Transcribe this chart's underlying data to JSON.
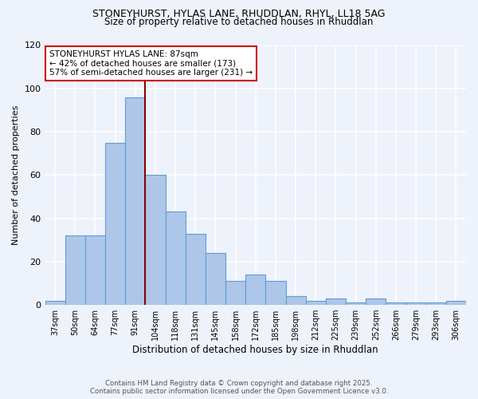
{
  "title1": "STONEYHURST, HYLAS LANE, RHUDDLAN, RHYL, LL18 5AG",
  "title2": "Size of property relative to detached houses in Rhuddlan",
  "xlabel": "Distribution of detached houses by size in Rhuddlan",
  "ylabel": "Number of detached properties",
  "categories": [
    "37sqm",
    "50sqm",
    "64sqm",
    "77sqm",
    "91sqm",
    "104sqm",
    "118sqm",
    "131sqm",
    "145sqm",
    "158sqm",
    "172sqm",
    "185sqm",
    "198sqm",
    "212sqm",
    "225sqm",
    "239sqm",
    "252sqm",
    "266sqm",
    "279sqm",
    "293sqm",
    "306sqm"
  ],
  "values": [
    2,
    32,
    32,
    75,
    96,
    60,
    43,
    33,
    24,
    11,
    14,
    11,
    4,
    2,
    3,
    1,
    3,
    1,
    1,
    1,
    2
  ],
  "bar_color": "#aec6e8",
  "bar_edgecolor": "#5a9fd4",
  "redline_index": 4.5,
  "redline_color": "#8b0000",
  "annotation_text": "STONEYHURST HYLAS LANE: 87sqm\n← 42% of detached houses are smaller (173)\n57% of semi-detached houses are larger (231) →",
  "footer1": "Contains HM Land Registry data © Crown copyright and database right 2025.",
  "footer2": "Contains public sector information licensed under the Open Government Licence v3.0.",
  "bg_color": "#eef2fb",
  "grid_color": "#ffffff",
  "ylim": [
    0,
    120
  ],
  "yticks": [
    0,
    20,
    40,
    60,
    80,
    100,
    120
  ]
}
